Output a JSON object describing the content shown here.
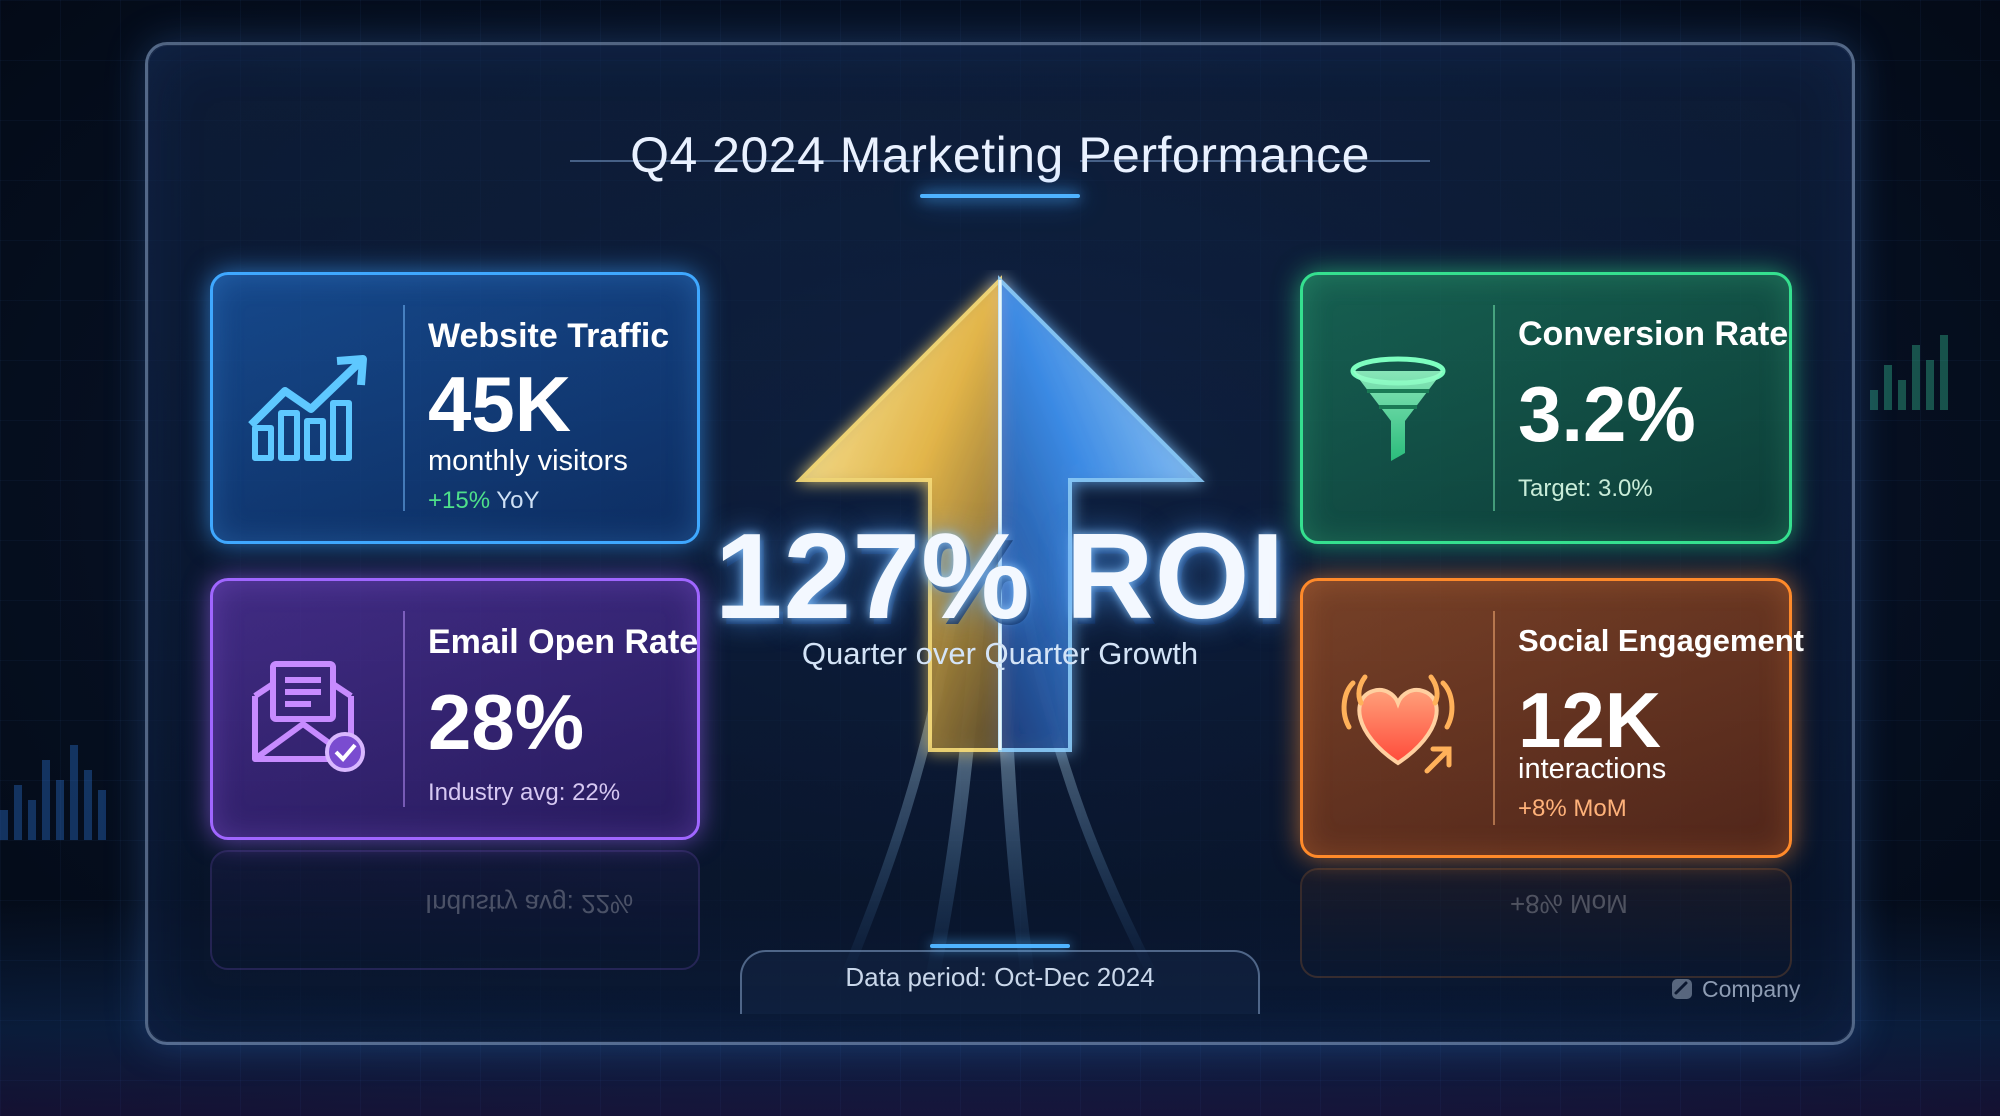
{
  "dashboard": {
    "title": "Q4 2024 Marketing Performance",
    "headline": {
      "value": "127% ROI",
      "caption": "Quarter over Quarter Growth"
    },
    "cards": {
      "website_traffic": {
        "label": "Website Traffic",
        "value": "45K",
        "sub": "monthly visitors",
        "note": "+15% YoY",
        "icon": "trending-up-chart-icon",
        "color": "#3fa8ff"
      },
      "email_open_rate": {
        "label": "Email Open Rate",
        "value": "28%",
        "note": "Industry avg: 22%",
        "icon": "envelope-check-icon",
        "color": "#a066ff"
      },
      "conversion_rate": {
        "label": "Conversion Rate",
        "value": "3.2%",
        "note": "Target: 3.0%",
        "icon": "funnel-icon",
        "color": "#35e08f"
      },
      "social_engagement": {
        "label": "Social Engagement",
        "value": "12K",
        "sub": "interactions",
        "note": "+8% MoM",
        "icon": "heart-icon",
        "color": "#ff8a2a"
      }
    },
    "footer": {
      "data_period": "Data period: Oct-Dec 2024",
      "company": "Company"
    },
    "colors": {
      "positive": "#4ee08a",
      "note_orange": "#ffb27a"
    }
  }
}
